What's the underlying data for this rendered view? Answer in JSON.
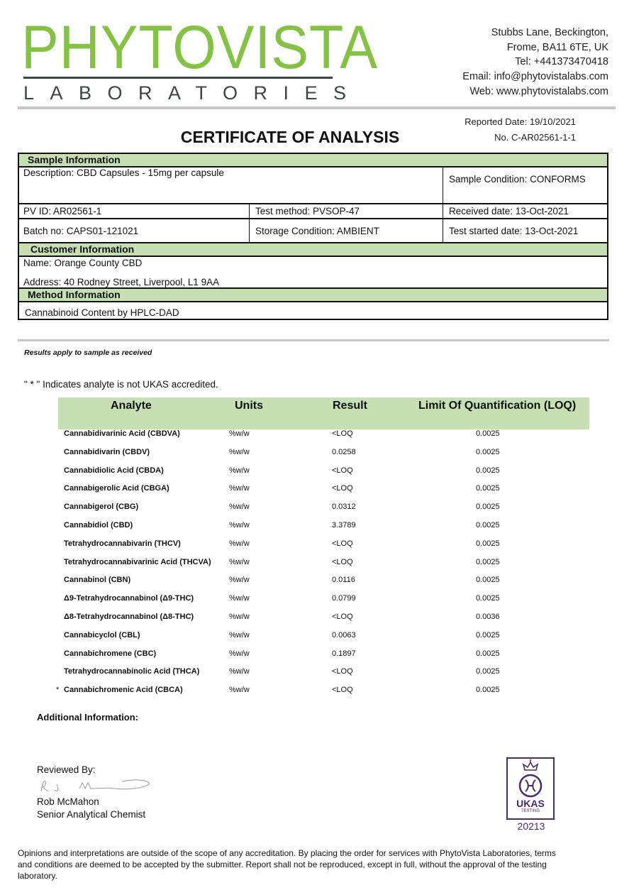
{
  "header": {
    "logo_text": "PHYTOVISTA",
    "logo_subtext": "LABORATORIES",
    "brand_color": "#84c341",
    "address_lines": [
      "Stubbs Lane, Beckington,",
      "Frome, BA11 6TE, UK",
      "Tel: +441373470418",
      "Email: info@phytovistalabs.com",
      "Web: www.phytovistalabs.com"
    ],
    "reported_date": "Reported Date: 19/10/2021",
    "certificate_no": "No. C-AR02561-1-1",
    "title": "CERTIFICATE OF ANALYSIS"
  },
  "sample": {
    "heading": "Sample Information",
    "description": "Description: CBD Capsules - 15mg per capsule",
    "condition": "Sample Condition: CONFORMS",
    "pv_id": "PV ID: AR02561-1",
    "test_method": "Test method: PVSOP-47",
    "received": "Received date: 13-Oct-2021",
    "batch": "Batch no: CAPS01-121021",
    "storage": "Storage Condition: AMBIENT",
    "test_started": "Test started date: 13-Oct-2021"
  },
  "customer": {
    "heading": "Customer Information",
    "name": "Name:   Orange County CBD",
    "address": "Address:   40 Rodney Street, Liverpool, L1 9AA"
  },
  "method": {
    "heading": "Method Information",
    "value": "Cannabinoid Content by HPLC-DAD"
  },
  "notes": {
    "results_apply": "Results apply to sample as received",
    "ukas_note": "\" * \" Indicates analyte is not UKAS accredited."
  },
  "results": {
    "headers": [
      "Analyte",
      "Units",
      "Result",
      "Limit Of Quantification (LOQ)"
    ],
    "rows": [
      {
        "mark": "",
        "analyte": "Cannabidivarinic Acid (CBDVA)",
        "units": "%w/w",
        "result": "<LOQ",
        "loq": "0.0025"
      },
      {
        "mark": "",
        "analyte": "Cannabidivarin (CBDV)",
        "units": "%w/w",
        "result": "0.0258",
        "loq": "0.0025"
      },
      {
        "mark": "",
        "analyte": "Cannabidiolic Acid (CBDA)",
        "units": "%w/w",
        "result": "<LOQ",
        "loq": "0.0025"
      },
      {
        "mark": "",
        "analyte": "Cannabigerolic Acid (CBGA)",
        "units": "%w/w",
        "result": "<LOQ",
        "loq": "0.0025"
      },
      {
        "mark": "",
        "analyte": "Cannabigerol (CBG)",
        "units": "%w/w",
        "result": "0.0312",
        "loq": "0.0025"
      },
      {
        "mark": "",
        "analyte": "Cannabidiol (CBD)",
        "units": "%w/w",
        "result": "3.3789",
        "loq": "0.0025"
      },
      {
        "mark": "",
        "analyte": "Tetrahydrocannabivarin (THCV)",
        "units": "%w/w",
        "result": "<LOQ",
        "loq": "0.0025"
      },
      {
        "mark": "",
        "analyte": "Tetrahydrocannabivarinic Acid (THCVA)",
        "units": "%w/w",
        "result": "<LOQ",
        "loq": "0.0025"
      },
      {
        "mark": "",
        "analyte": "Cannabinol (CBN)",
        "units": "%w/w",
        "result": "0.0116",
        "loq": "0.0025"
      },
      {
        "mark": "",
        "analyte": "Δ9-Tetrahydrocannabinol (Δ9-THC)",
        "units": "%w/w",
        "result": "0.0799",
        "loq": "0.0025"
      },
      {
        "mark": "",
        "analyte": "Δ8-Tetrahydrocannabinol (Δ8-THC)",
        "units": "%w/w",
        "result": "<LOQ",
        "loq": "0.0036"
      },
      {
        "mark": "",
        "analyte": "Cannabicyclol (CBL)",
        "units": "%w/w",
        "result": "0.0063",
        "loq": "0.0025"
      },
      {
        "mark": "",
        "analyte": "Cannabichromene (CBC)",
        "units": "%w/w",
        "result": "0.1897",
        "loq": "0.0025"
      },
      {
        "mark": "",
        "analyte": "Tetrahydrocannabinolic Acid (THCA)",
        "units": "%w/w",
        "result": "<LOQ",
        "loq": "0.0025"
      },
      {
        "mark": "*",
        "analyte": "Cannabichromenic Acid (CBCA)",
        "units": "%w/w",
        "result": "<LOQ",
        "loq": "0.0025"
      }
    ]
  },
  "additional_info": "Additional Information:",
  "review": {
    "label": "Reviewed By:",
    "signature": "R. J. M",
    "name": "Rob McMahon",
    "role": "Senior Analytical Chemist"
  },
  "ukas": {
    "label": "UKAS",
    "sub": "TESTING",
    "number": "20213",
    "color": "#4a2a6e"
  },
  "footer": "Opinions and interpretations are outside of the scope of any accreditation. By placing the order for services with PhytoVista Laboratories, terms and conditions are deemed to be accepted by the submitter. Report shall not be reproduced, except in full, without the approval of the testing laboratory."
}
